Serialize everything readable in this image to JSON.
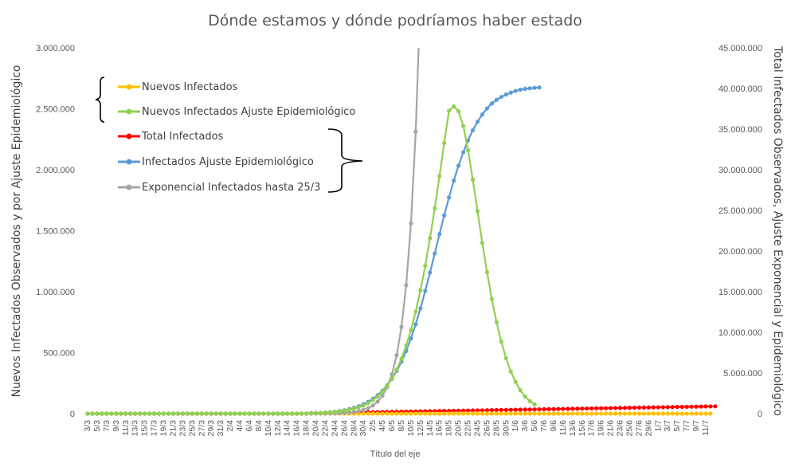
{
  "chart_data": {
    "type": "line",
    "title": "Dónde estamos y dónde podríamos haber estado",
    "xlabel": "Título del eje",
    "ylabel_left": "Nuevos Infectados Observados y por Ajuste Epidemiológico",
    "ylabel_right": "Total Infectados Observados, Ajuste Exponencial y Epidemiológico",
    "ylim_left": [
      0,
      3000000
    ],
    "ylim_right": [
      0,
      45000000
    ],
    "yticks_left": [
      "0",
      "500.000",
      "1.000.000",
      "1.500.000",
      "2.000.000",
      "2.500.000",
      "3.000.000"
    ],
    "yticks_right": [
      "0",
      "5.000.000",
      "10.000.000",
      "15.000.000",
      "20.000.000",
      "25.000.000",
      "30.000.000",
      "35.000.000",
      "40.000.000",
      "45.000.000"
    ],
    "x_tick_labels": [
      "3/3",
      "5/3",
      "7/3",
      "9/3",
      "11/3",
      "13/3",
      "15/3",
      "17/3",
      "19/3",
      "21/3",
      "23/3",
      "25/3",
      "27/3",
      "29/3",
      "31/3",
      "2/4",
      "4/4",
      "6/4",
      "8/4",
      "10/4",
      "12/4",
      "14/4",
      "16/4",
      "18/4",
      "20/4",
      "22/4",
      "24/4",
      "26/4",
      "28/4",
      "30/4",
      "2/5",
      "4/5",
      "6/5",
      "8/5",
      "10/5",
      "12/5",
      "14/5",
      "16/5",
      "18/5",
      "20/5",
      "22/5",
      "24/5",
      "26/5",
      "28/5",
      "30/5",
      "1/6",
      "3/6",
      "5/6",
      "7/6",
      "9/6",
      "11/6",
      "13/6",
      "15/6",
      "17/6",
      "19/6",
      "21/6",
      "23/6",
      "25/6",
      "27/6",
      "29/6",
      "1/7",
      "3/7",
      "5/7",
      "7/7",
      "9/7",
      "11/7"
    ],
    "x_start": "3/3",
    "grid": false,
    "legend_position": "top-left",
    "series": [
      {
        "name": "Nuevos Infectados",
        "axis": "left",
        "color": "#FFC000",
        "values": [
          0,
          0,
          0,
          0,
          0,
          0,
          0,
          0,
          0,
          0,
          0,
          0,
          0,
          0,
          0,
          0,
          0,
          0,
          0,
          0,
          0,
          0,
          0,
          0,
          0,
          0,
          0,
          0,
          0,
          0,
          0,
          0,
          0,
          0,
          0,
          0,
          0,
          0,
          0,
          0,
          0,
          0,
          0,
          0,
          0,
          0,
          0,
          0,
          0,
          0,
          0,
          0,
          0,
          0,
          0,
          0,
          0,
          0,
          0,
          0,
          0,
          0,
          0,
          0,
          0,
          0,
          0,
          0,
          0,
          0,
          0,
          0,
          0,
          0,
          0,
          0,
          0,
          0,
          0,
          0,
          0,
          0,
          0,
          0,
          0,
          0,
          0,
          0,
          0,
          0,
          0,
          0,
          0,
          0,
          0,
          0,
          0,
          0,
          0,
          0,
          0,
          0,
          0,
          0,
          0,
          0,
          0,
          0,
          0,
          0,
          0,
          0,
          0,
          0,
          0,
          0,
          0,
          0,
          0,
          0,
          0,
          0,
          0,
          0,
          0,
          0,
          0,
          0,
          0,
          0,
          0,
          0
        ]
      },
      {
        "name": "Nuevos Infectados Ajuste Epidemiológico",
        "axis": "left",
        "color": "#92D050",
        "values": [
          0,
          0,
          0,
          0,
          0,
          0,
          0,
          0,
          0,
          0,
          0,
          0,
          0,
          0,
          0,
          0,
          0,
          0,
          0,
          0,
          0,
          0,
          0,
          0,
          0,
          0,
          0,
          0,
          0,
          0,
          0,
          0,
          0,
          0,
          0,
          0,
          0,
          0,
          0,
          0,
          0,
          0,
          0,
          0,
          0,
          0,
          0,
          2000,
          4000,
          6000,
          8000,
          11000,
          14000,
          18000,
          24000,
          31000,
          40000,
          52000,
          67000,
          86000,
          110000,
          141000,
          180000,
          228000,
          288000,
          362000,
          451000,
          558000,
          686000,
          837000,
          1012000,
          1212000,
          1437000,
          1684000,
          1948000,
          2219000,
          2484000,
          2520000,
          2480000,
          2360000,
          2160000,
          1920000,
          1660000,
          1400000,
          1160000,
          940000,
          750000,
          590000,
          455000,
          345000,
          260000,
          192000,
          140000,
          103000,
          75000
        ]
      },
      {
        "name": "Total Infectados",
        "axis": "right",
        "color": "#FF0000",
        "values": [
          0,
          0,
          0,
          0,
          0,
          0,
          0,
          0,
          0,
          0,
          0,
          0,
          0,
          0,
          0,
          0,
          0,
          0,
          0,
          0,
          0,
          0,
          0,
          0,
          0,
          0,
          0,
          0,
          0,
          0,
          0,
          0,
          0,
          0,
          0,
          0,
          0,
          0,
          0,
          0,
          0,
          0,
          0,
          0,
          0,
          0,
          0,
          50000,
          60000,
          70000,
          80000,
          90000,
          100000,
          110000,
          120000,
          130000,
          140000,
          150000,
          160000,
          170000,
          180000,
          190000,
          200000,
          210000,
          220000,
          230000,
          240000,
          250000,
          260000,
          270000,
          280000,
          290000,
          300000,
          310000,
          320000,
          330000,
          340000,
          350000,
          360000,
          370000,
          380000,
          390000,
          400000,
          410000,
          420000,
          430000,
          440000,
          450000,
          460000,
          470000,
          480000,
          490000,
          500000,
          510000,
          520000,
          530000,
          540000,
          550000,
          560000,
          570000,
          580000,
          590000,
          600000,
          610000,
          620000,
          630000,
          640000,
          650000,
          660000,
          670000,
          680000,
          690000,
          700000,
          710000,
          720000,
          730000,
          740000,
          750000,
          760000,
          770000,
          780000,
          790000,
          800000,
          810000,
          820000,
          830000,
          840000,
          850000,
          860000,
          870000,
          880000,
          890000,
          900000,
          910000,
          920000,
          930000,
          940000,
          950000,
          960000,
          970000,
          980000,
          990000,
          1000000,
          1010000,
          1020000,
          1030000,
          1040000,
          1050000,
          1060000,
          1070000,
          1080000,
          1090000,
          1100000,
          1110000,
          1120000,
          1130000,
          1140000,
          1150000,
          1160000,
          1170000,
          1180000,
          1190000,
          1200000
        ]
      },
      {
        "name": "Infectados Ajuste Epidemiológico",
        "axis": "right",
        "color": "#5B9BD5",
        "values": [
          0,
          0,
          0,
          0,
          0,
          0,
          0,
          0,
          0,
          0,
          0,
          0,
          0,
          0,
          0,
          0,
          0,
          0,
          0,
          0,
          0,
          0,
          0,
          0,
          0,
          0,
          0,
          0,
          0,
          0,
          0,
          0,
          0,
          0,
          0,
          0,
          0,
          0,
          0,
          0,
          0,
          0,
          0,
          0,
          0,
          0,
          0,
          30000,
          60000,
          90000,
          130000,
          180000,
          240000,
          320000,
          420000,
          550000,
          710000,
          910000,
          1150000,
          1450000,
          1820000,
          2270000,
          2820000,
          3490000,
          4290000,
          5250000,
          6380000,
          7710000,
          9250000,
          11000000,
          12950000,
          15080000,
          17350000,
          19700000,
          22080000,
          24400000,
          26600000,
          28650000,
          30500000,
          32150000,
          33600000,
          34850000,
          35900000,
          36800000,
          37550000,
          38150000,
          38600000,
          38950000,
          39250000,
          39500000,
          39700000,
          39850000,
          39950000,
          40020000,
          40080000,
          40120000
        ]
      },
      {
        "name": "Exponencial Infectados hasta 25/3",
        "axis": "right",
        "color": "#A5A5A5",
        "values": [
          0,
          0,
          0,
          0,
          0,
          0,
          0,
          0,
          0,
          0,
          0,
          0,
          0,
          0,
          0,
          0,
          0,
          0,
          0,
          0,
          0,
          0,
          0,
          0,
          0,
          0,
          0,
          0,
          0,
          0,
          0,
          0,
          0,
          0,
          0,
          0,
          0,
          0,
          0,
          0,
          0,
          0,
          0,
          0,
          0,
          0,
          0,
          5000,
          8000,
          12000,
          18000,
          27000,
          40000,
          60000,
          90000,
          135000,
          200000,
          300000,
          450000,
          670000,
          1000000,
          1480000,
          2200000,
          3260000,
          4840000,
          7180000,
          10650000,
          15800000,
          23400000,
          34700000,
          51500000
        ]
      }
    ]
  }
}
